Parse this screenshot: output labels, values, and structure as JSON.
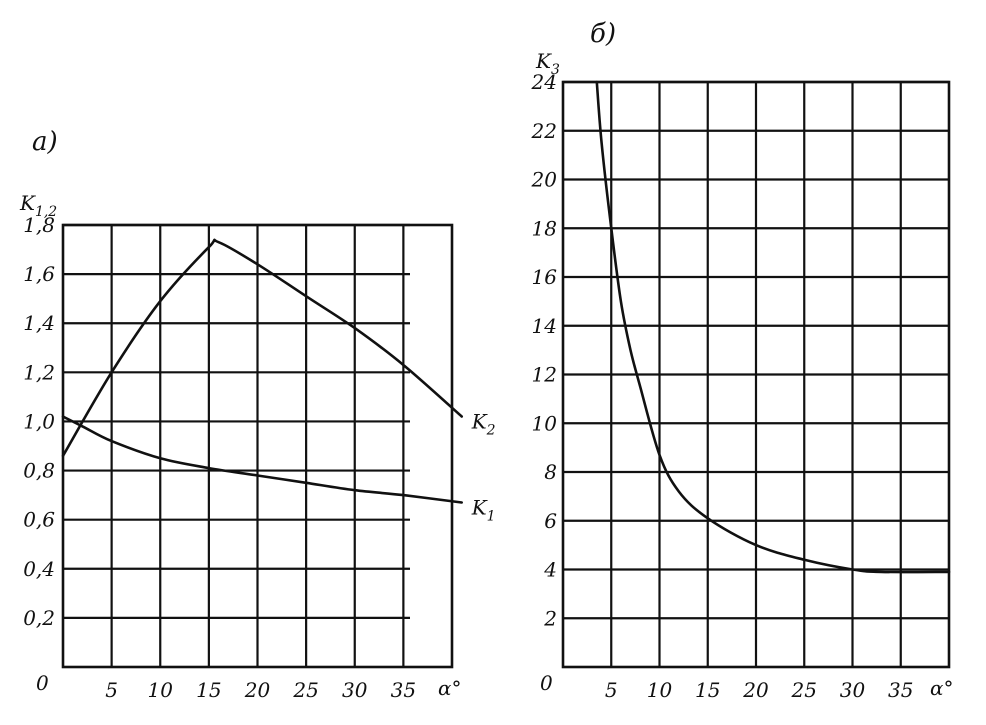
{
  "chart_data": [
    {
      "type": "line",
      "panel_label": "а)",
      "ylabel": "K",
      "ylabel_subscript": "1,2",
      "xlabel": "α°",
      "xlim": [
        0,
        40
      ],
      "ylim": [
        0,
        1.8
      ],
      "x_ticks": [
        "5",
        "10",
        "15",
        "20",
        "25",
        "30",
        "35"
      ],
      "y_ticks": [
        "0,2",
        "0,4",
        "0,6",
        "0,8",
        "1,0",
        "1,2",
        "1,4",
        "1,6",
        "1,8"
      ],
      "origin_label": "0",
      "grid": true,
      "series": [
        {
          "name": "K",
          "name_subscript": "2",
          "x": [
            0,
            5,
            10,
            15,
            16,
            20,
            25,
            30,
            35,
            41
          ],
          "y": [
            0.86,
            1.2,
            1.49,
            1.71,
            1.73,
            1.64,
            1.51,
            1.38,
            1.23,
            1.02
          ]
        },
        {
          "name": "K",
          "name_subscript": "1",
          "x": [
            0,
            2,
            5,
            10,
            15,
            20,
            25,
            30,
            35,
            41
          ],
          "y": [
            1.02,
            0.98,
            0.92,
            0.85,
            0.81,
            0.78,
            0.75,
            0.72,
            0.7,
            0.67
          ]
        }
      ]
    },
    {
      "type": "line",
      "panel_label": "б)",
      "ylabel": "K",
      "ylabel_subscript": "3",
      "xlabel": "α°",
      "xlim": [
        0,
        40
      ],
      "ylim": [
        0,
        24
      ],
      "x_ticks": [
        "5",
        "10",
        "15",
        "20",
        "25",
        "30",
        "35"
      ],
      "y_ticks": [
        "2",
        "4",
        "6",
        "8",
        "10",
        "12",
        "14",
        "16",
        "18",
        "20",
        "22",
        "24"
      ],
      "origin_label": "0",
      "grid": true,
      "series": [
        {
          "name": "",
          "x": [
            3.5,
            4,
            5,
            6,
            7,
            8,
            10,
            12,
            15,
            20,
            25,
            30,
            33,
            40
          ],
          "y": [
            24,
            21.5,
            18,
            15,
            13,
            11.5,
            8.7,
            7.2,
            6.1,
            5,
            4.4,
            4,
            3.9,
            3.9
          ]
        }
      ]
    }
  ]
}
